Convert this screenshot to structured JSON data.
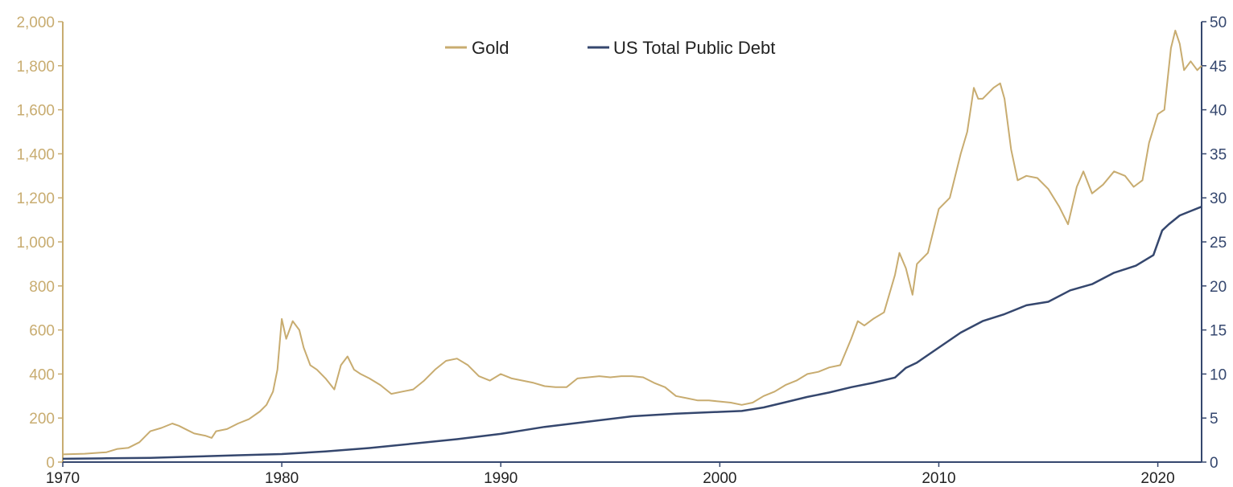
{
  "chart_data": {
    "type": "line",
    "title": "",
    "xlabel": "",
    "ylabel_left": "",
    "ylabel_right": "",
    "x_range": [
      1970,
      2022
    ],
    "x_ticks": [
      "1970",
      "1980",
      "1990",
      "2000",
      "2010",
      "2020"
    ],
    "y_left_range": [
      0,
      2000
    ],
    "y_left_ticks": [
      "0",
      "200",
      "400",
      "600",
      "800",
      "1,000",
      "1,200",
      "1,400",
      "1,600",
      "1,800",
      "2,000"
    ],
    "y_right_range": [
      0,
      50
    ],
    "y_right_ticks": [
      "0",
      "5",
      "10",
      "15",
      "20",
      "25",
      "30",
      "35",
      "40",
      "45",
      "50"
    ],
    "grid": false,
    "legend_position": "top-center",
    "colors": {
      "gold": "#c8ac70",
      "debt": "#35476e"
    },
    "series": [
      {
        "name": "Gold",
        "axis": "left",
        "x": [
          1970.0,
          1971.0,
          1972.0,
          1972.5,
          1973.0,
          1973.5,
          1974.0,
          1974.5,
          1975.0,
          1975.3,
          1975.7,
          1976.0,
          1976.5,
          1976.8,
          1977.0,
          1977.5,
          1978.0,
          1978.5,
          1979.0,
          1979.3,
          1979.6,
          1979.8,
          1980.0,
          1980.2,
          1980.5,
          1980.8,
          1981.0,
          1981.3,
          1981.6,
          1982.0,
          1982.4,
          1982.7,
          1983.0,
          1983.3,
          1983.6,
          1984.0,
          1984.5,
          1985.0,
          1985.5,
          1986.0,
          1986.5,
          1987.0,
          1987.5,
          1988.0,
          1988.5,
          1989.0,
          1989.5,
          1990.0,
          1990.5,
          1991.0,
          1991.5,
          1992.0,
          1992.5,
          1993.0,
          1993.5,
          1994.0,
          1994.5,
          1995.0,
          1995.5,
          1996.0,
          1996.5,
          1997.0,
          1997.5,
          1998.0,
          1998.5,
          1999.0,
          1999.5,
          2000.0,
          2000.5,
          2001.0,
          2001.5,
          2002.0,
          2002.5,
          2003.0,
          2003.5,
          2004.0,
          2004.5,
          2005.0,
          2005.5,
          2006.0,
          2006.3,
          2006.6,
          2007.0,
          2007.5,
          2008.0,
          2008.2,
          2008.5,
          2008.8,
          2009.0,
          2009.5,
          2010.0,
          2010.5,
          2011.0,
          2011.3,
          2011.6,
          2011.8,
          2012.0,
          2012.5,
          2012.8,
          2013.0,
          2013.3,
          2013.6,
          2014.0,
          2014.5,
          2015.0,
          2015.5,
          2015.9,
          2016.3,
          2016.6,
          2017.0,
          2017.5,
          2018.0,
          2018.5,
          2018.9,
          2019.3,
          2019.6,
          2020.0,
          2020.3,
          2020.6,
          2020.8,
          2021.0,
          2021.2,
          2021.5,
          2021.8,
          2022.0
        ],
        "y": [
          35,
          38,
          45,
          60,
          65,
          90,
          140,
          155,
          175,
          165,
          145,
          130,
          120,
          110,
          140,
          150,
          175,
          195,
          230,
          260,
          320,
          420,
          650,
          560,
          640,
          600,
          520,
          440,
          420,
          380,
          330,
          440,
          480,
          420,
          400,
          380,
          350,
          310,
          320,
          330,
          370,
          420,
          460,
          470,
          440,
          390,
          370,
          400,
          380,
          370,
          360,
          345,
          340,
          340,
          380,
          385,
          390,
          385,
          390,
          390,
          385,
          360,
          340,
          300,
          290,
          280,
          280,
          275,
          270,
          260,
          270,
          300,
          320,
          350,
          370,
          400,
          410,
          430,
          440,
          560,
          640,
          620,
          650,
          680,
          850,
          950,
          880,
          760,
          900,
          950,
          1150,
          1200,
          1400,
          1500,
          1700,
          1650,
          1650,
          1700,
          1720,
          1650,
          1420,
          1280,
          1300,
          1290,
          1240,
          1160,
          1080,
          1250,
          1320,
          1220,
          1260,
          1320,
          1300,
          1250,
          1280,
          1450,
          1580,
          1600,
          1880,
          1960,
          1900,
          1780,
          1820,
          1780,
          1800
        ]
      },
      {
        "name": "US Total Public Debt",
        "axis": "right",
        "x": [
          1970.0,
          1972.0,
          1974.0,
          1976.0,
          1978.0,
          1980.0,
          1982.0,
          1984.0,
          1986.0,
          1988.0,
          1990.0,
          1992.0,
          1994.0,
          1996.0,
          1998.0,
          2000.0,
          2001.0,
          2002.0,
          2003.0,
          2004.0,
          2005.0,
          2006.0,
          2007.0,
          2008.0,
          2008.5,
          2009.0,
          2010.0,
          2011.0,
          2012.0,
          2013.0,
          2014.0,
          2015.0,
          2016.0,
          2017.0,
          2018.0,
          2019.0,
          2019.8,
          2020.2,
          2020.5,
          2021.0,
          2021.5,
          2022.0
        ],
        "y": [
          0.37,
          0.43,
          0.48,
          0.63,
          0.78,
          0.91,
          1.2,
          1.6,
          2.1,
          2.6,
          3.2,
          4.0,
          4.6,
          5.2,
          5.5,
          5.7,
          5.8,
          6.2,
          6.8,
          7.4,
          7.9,
          8.5,
          9.0,
          9.6,
          10.7,
          11.3,
          13.0,
          14.7,
          16.0,
          16.8,
          17.8,
          18.2,
          19.5,
          20.2,
          21.5,
          22.3,
          23.5,
          26.3,
          27.0,
          28.0,
          28.5,
          29.0
        ]
      }
    ]
  }
}
